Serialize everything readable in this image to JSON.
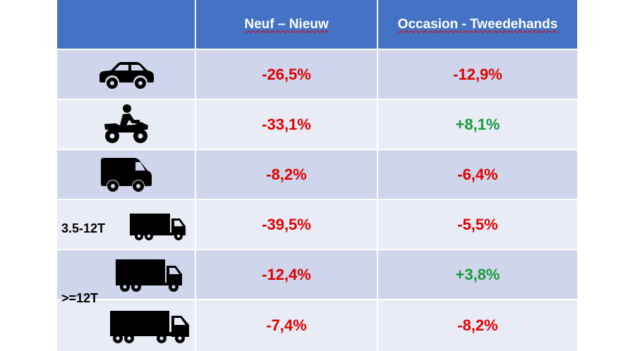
{
  "header": {
    "col1": "Neuf – Nieuw",
    "col2": "Occasion - Tweedehands"
  },
  "rows": [
    {
      "icon": "car-icon",
      "neuf": "-26,5%",
      "occasion": "-12,9%"
    },
    {
      "icon": "atv-quad-icon",
      "neuf": "-33,1%",
      "occasion": "+8,1%"
    },
    {
      "icon": "van-icon",
      "neuf": "-8,2%",
      "occasion": "-6,4%"
    },
    {
      "icon": "light-truck-icon",
      "label": "3.5-12T",
      "neuf": "-39,5%",
      "occasion": "-5,5%"
    },
    {
      "icon": "heavy-truck-icon",
      "neuf": "-12,4%",
      "occasion": "+3,8%"
    },
    {
      "icon": "semi-trailer-truck-icon",
      "neuf": "-7,4%",
      "occasion": "-8,2%"
    }
  ],
  "group_label_heavy": ">=12T",
  "colors": {
    "header_bg": "#4472c4",
    "row_dark": "#cfd5ea",
    "row_light": "#e9ebf5",
    "negative": "#e00000",
    "positive": "#1a9a3a"
  }
}
